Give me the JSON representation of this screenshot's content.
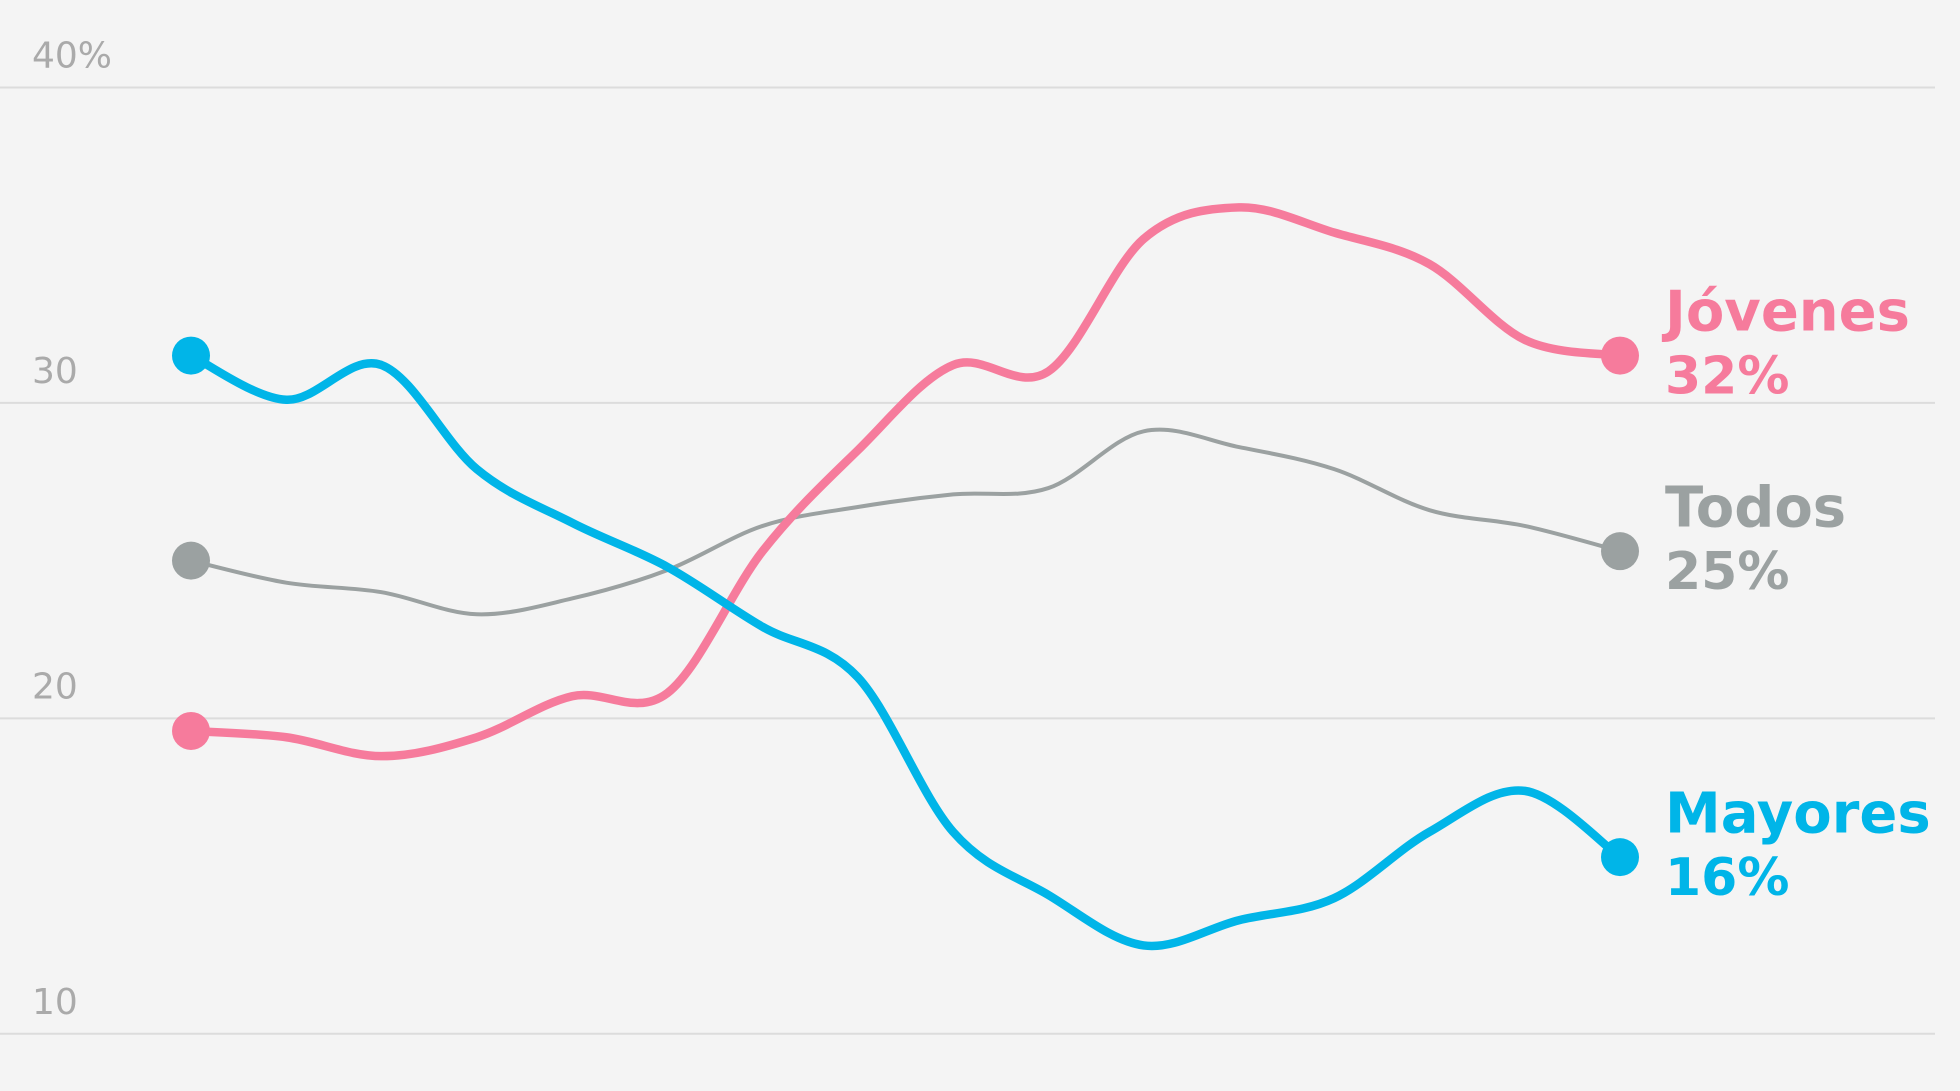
{
  "chart_data": {
    "type": "line",
    "categories": [
      null,
      null,
      null,
      null,
      null,
      null,
      null,
      null,
      null,
      null,
      null,
      null,
      null,
      null,
      null,
      null
    ],
    "series": [
      {
        "name": "Todos",
        "color": "#9ba1a1",
        "values": [
          25.0,
          24.3,
          24.0,
          23.3,
          23.8,
          24.7,
          26.1,
          26.7,
          27.1,
          27.3,
          29.1,
          28.6,
          27.9,
          26.6,
          26.1,
          25.3
        ],
        "value_labels": [
          null,
          null,
          null,
          null,
          null,
          null,
          null,
          null,
          null,
          null,
          null,
          null,
          null,
          null,
          null,
          "25%"
        ]
      },
      {
        "name": "Jóvenes",
        "color": "#f67b9c",
        "values": [
          19.6,
          19.4,
          18.8,
          19.4,
          20.7,
          20.8,
          25.3,
          28.5,
          31.2,
          31.0,
          35.2,
          36.2,
          35.4,
          34.4,
          32.0,
          31.5
        ],
        "value_labels": [
          null,
          null,
          null,
          null,
          null,
          null,
          null,
          null,
          null,
          null,
          null,
          null,
          null,
          null,
          null,
          "32%"
        ]
      },
      {
        "name": "Mayores",
        "color": "#00b5e8",
        "values": [
          31.5,
          30.1,
          31.2,
          27.9,
          26.2,
          24.8,
          22.9,
          21.3,
          16.4,
          14.4,
          12.8,
          13.6,
          14.3,
          16.4,
          17.7,
          15.6
        ],
        "value_labels": [
          null,
          null,
          null,
          null,
          null,
          null,
          null,
          null,
          null,
          null,
          null,
          null,
          null,
          null,
          null,
          "16%"
        ]
      }
    ],
    "ylim": [
      10,
      40
    ],
    "yticks": [
      10,
      20,
      30,
      {
        "value": 40,
        "label": "40%"
      }
    ],
    "grid": true
  }
}
